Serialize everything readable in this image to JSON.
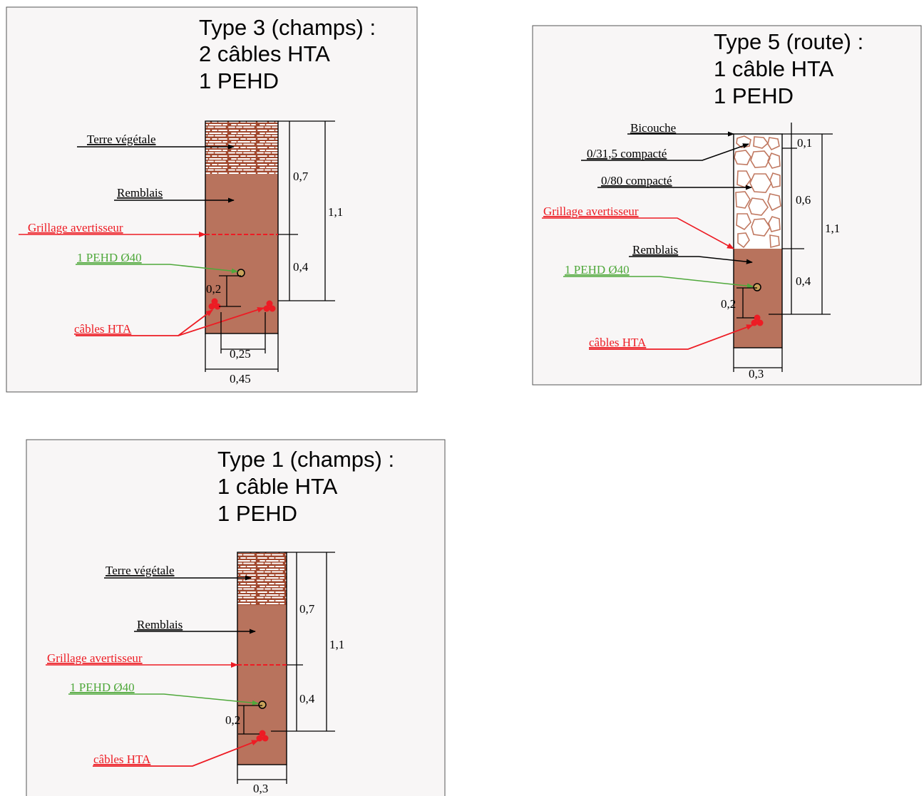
{
  "colors": {
    "panel_bg": "#f8f6f6",
    "panel_border": "#555555",
    "fill_soil": "#b8735d",
    "fill_topsoil": "#a0472d",
    "fill_road": "#ffffff",
    "road_stroke": "#c07860",
    "label_black": "#000000",
    "label_red": "#ed1c24",
    "label_green": "#4fa83b",
    "cable_red": "#ed1c24"
  },
  "panels": [
    {
      "id": "type3",
      "title_lines": [
        "Type 3 (champs) :",
        "2 câbles HTA",
        "1 PEHD"
      ],
      "labels": {
        "topsoil": "Terre végétale",
        "backfill": "Remblais",
        "warning_mesh": "Grillage avertisseur",
        "duct": "1 PEHD Ø40",
        "cables": "câbles HTA"
      },
      "dimensions": {
        "upper_depth": "0,7",
        "lower_depth": "0,4",
        "total_depth": "1,1",
        "duct_offset": "0,2",
        "cable_spacing": "0,25",
        "width": "0,45"
      }
    },
    {
      "id": "type5",
      "title_lines": [
        "Type 5 (route) :",
        "1 câble HTA",
        "1 PEHD"
      ],
      "labels": {
        "surface": "Bicouche",
        "base_course": "0/31,5 compacté",
        "sub_base": "0/80 compacté",
        "warning_mesh": "Grillage avertisseur",
        "backfill": "Remblais",
        "duct": "1 PEHD Ø40",
        "cables": "câbles HTA"
      },
      "dimensions": {
        "surface_depth": "0,1",
        "upper_depth": "0,6",
        "lower_depth": "0,4",
        "total_depth": "1,1",
        "duct_offset": "0,2",
        "width": "0,3"
      }
    },
    {
      "id": "type1",
      "title_lines": [
        "Type 1 (champs) :",
        "1 câble HTA",
        "1 PEHD"
      ],
      "labels": {
        "topsoil": "Terre végétale",
        "backfill": "Remblais",
        "warning_mesh": "Grillage avertisseur",
        "duct": "1 PEHD Ø40",
        "cables": "câbles HTA"
      },
      "dimensions": {
        "upper_depth": "0,7",
        "lower_depth": "0,4",
        "total_depth": "1,1",
        "duct_offset": "0,2",
        "width": "0,3"
      }
    }
  ]
}
